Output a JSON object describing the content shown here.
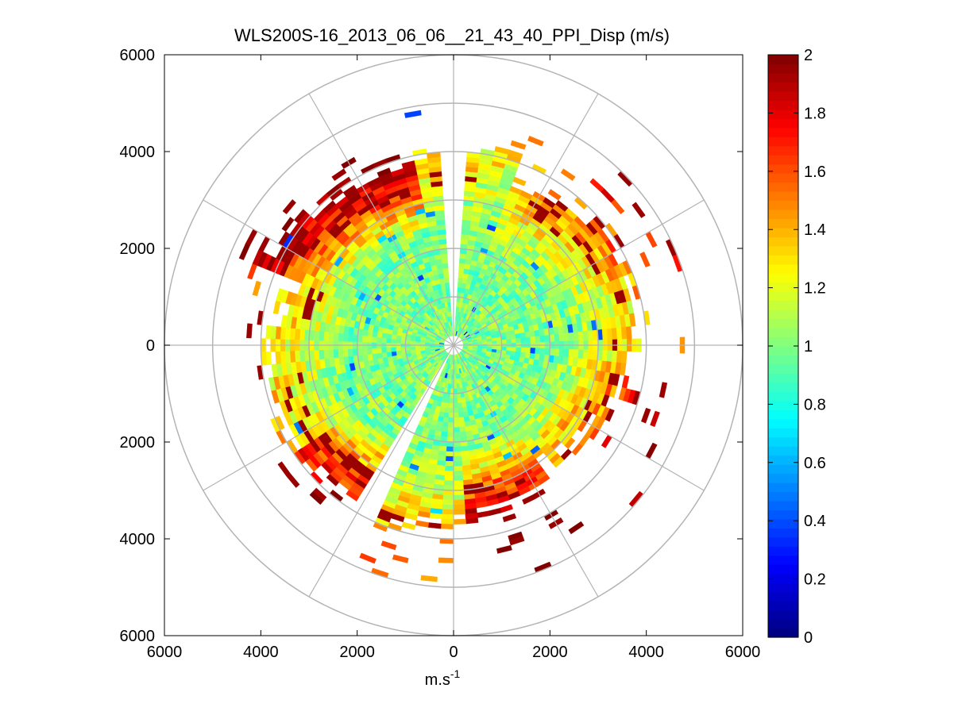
{
  "chart_data": {
    "type": "heatmap",
    "subtype": "polar-ppi",
    "title": "WLS200S-16_2013_06_06__21_43_40_PPI_Disp (m/s)",
    "xlabel_base": "m.s",
    "xlabel_exp": "-1",
    "ylabel": "",
    "xlim": [
      -6000,
      6000
    ],
    "ylim": [
      -6000,
      6000
    ],
    "x_ticks": [
      -6000,
      -4000,
      -2000,
      0,
      2000,
      4000,
      6000
    ],
    "x_tick_labels": [
      "6000",
      "4000",
      "2000",
      "0",
      "2000",
      "4000",
      "6000"
    ],
    "y_ticks": [
      6000,
      4000,
      2000,
      0,
      -2000,
      -4000,
      -6000
    ],
    "y_tick_labels": [
      "6000",
      "4000",
      "2000",
      "0",
      "2000",
      "4000",
      "6000"
    ],
    "range_rings": [
      1000,
      2000,
      3000,
      4000,
      5000,
      6000
    ],
    "spokes_deg": [
      0,
      30,
      60,
      90,
      120,
      150,
      180,
      210,
      240,
      270,
      300,
      330
    ],
    "colorbar": {
      "min": 0,
      "max": 2,
      "ticks": [
        0,
        0.2,
        0.4,
        0.6,
        0.8,
        1,
        1.2,
        1.4,
        1.6,
        1.8,
        2
      ],
      "tick_labels": [
        "0",
        "0.2",
        "0.4",
        "0.6",
        "0.8",
        "1",
        "1.2",
        "1.4",
        "1.6",
        "1.8",
        "2"
      ],
      "colormap": "jet"
    },
    "data_coverage": {
      "range_gate_m": 100,
      "azimuth_step_deg": 4,
      "max_range_m": 5000,
      "min_range_m": 0,
      "typical_value_ms": 1.0,
      "gap_sectors_deg": [
        [
          -3,
          3
        ],
        [
          205,
          212
        ]
      ],
      "description": "Dispersion values mostly 0.8-1.2 m/s near the center; higher values (1.4-2.0 m/s) along outer ranges especially NW (300-340 deg) and S-SW (150-230 deg)."
    }
  }
}
